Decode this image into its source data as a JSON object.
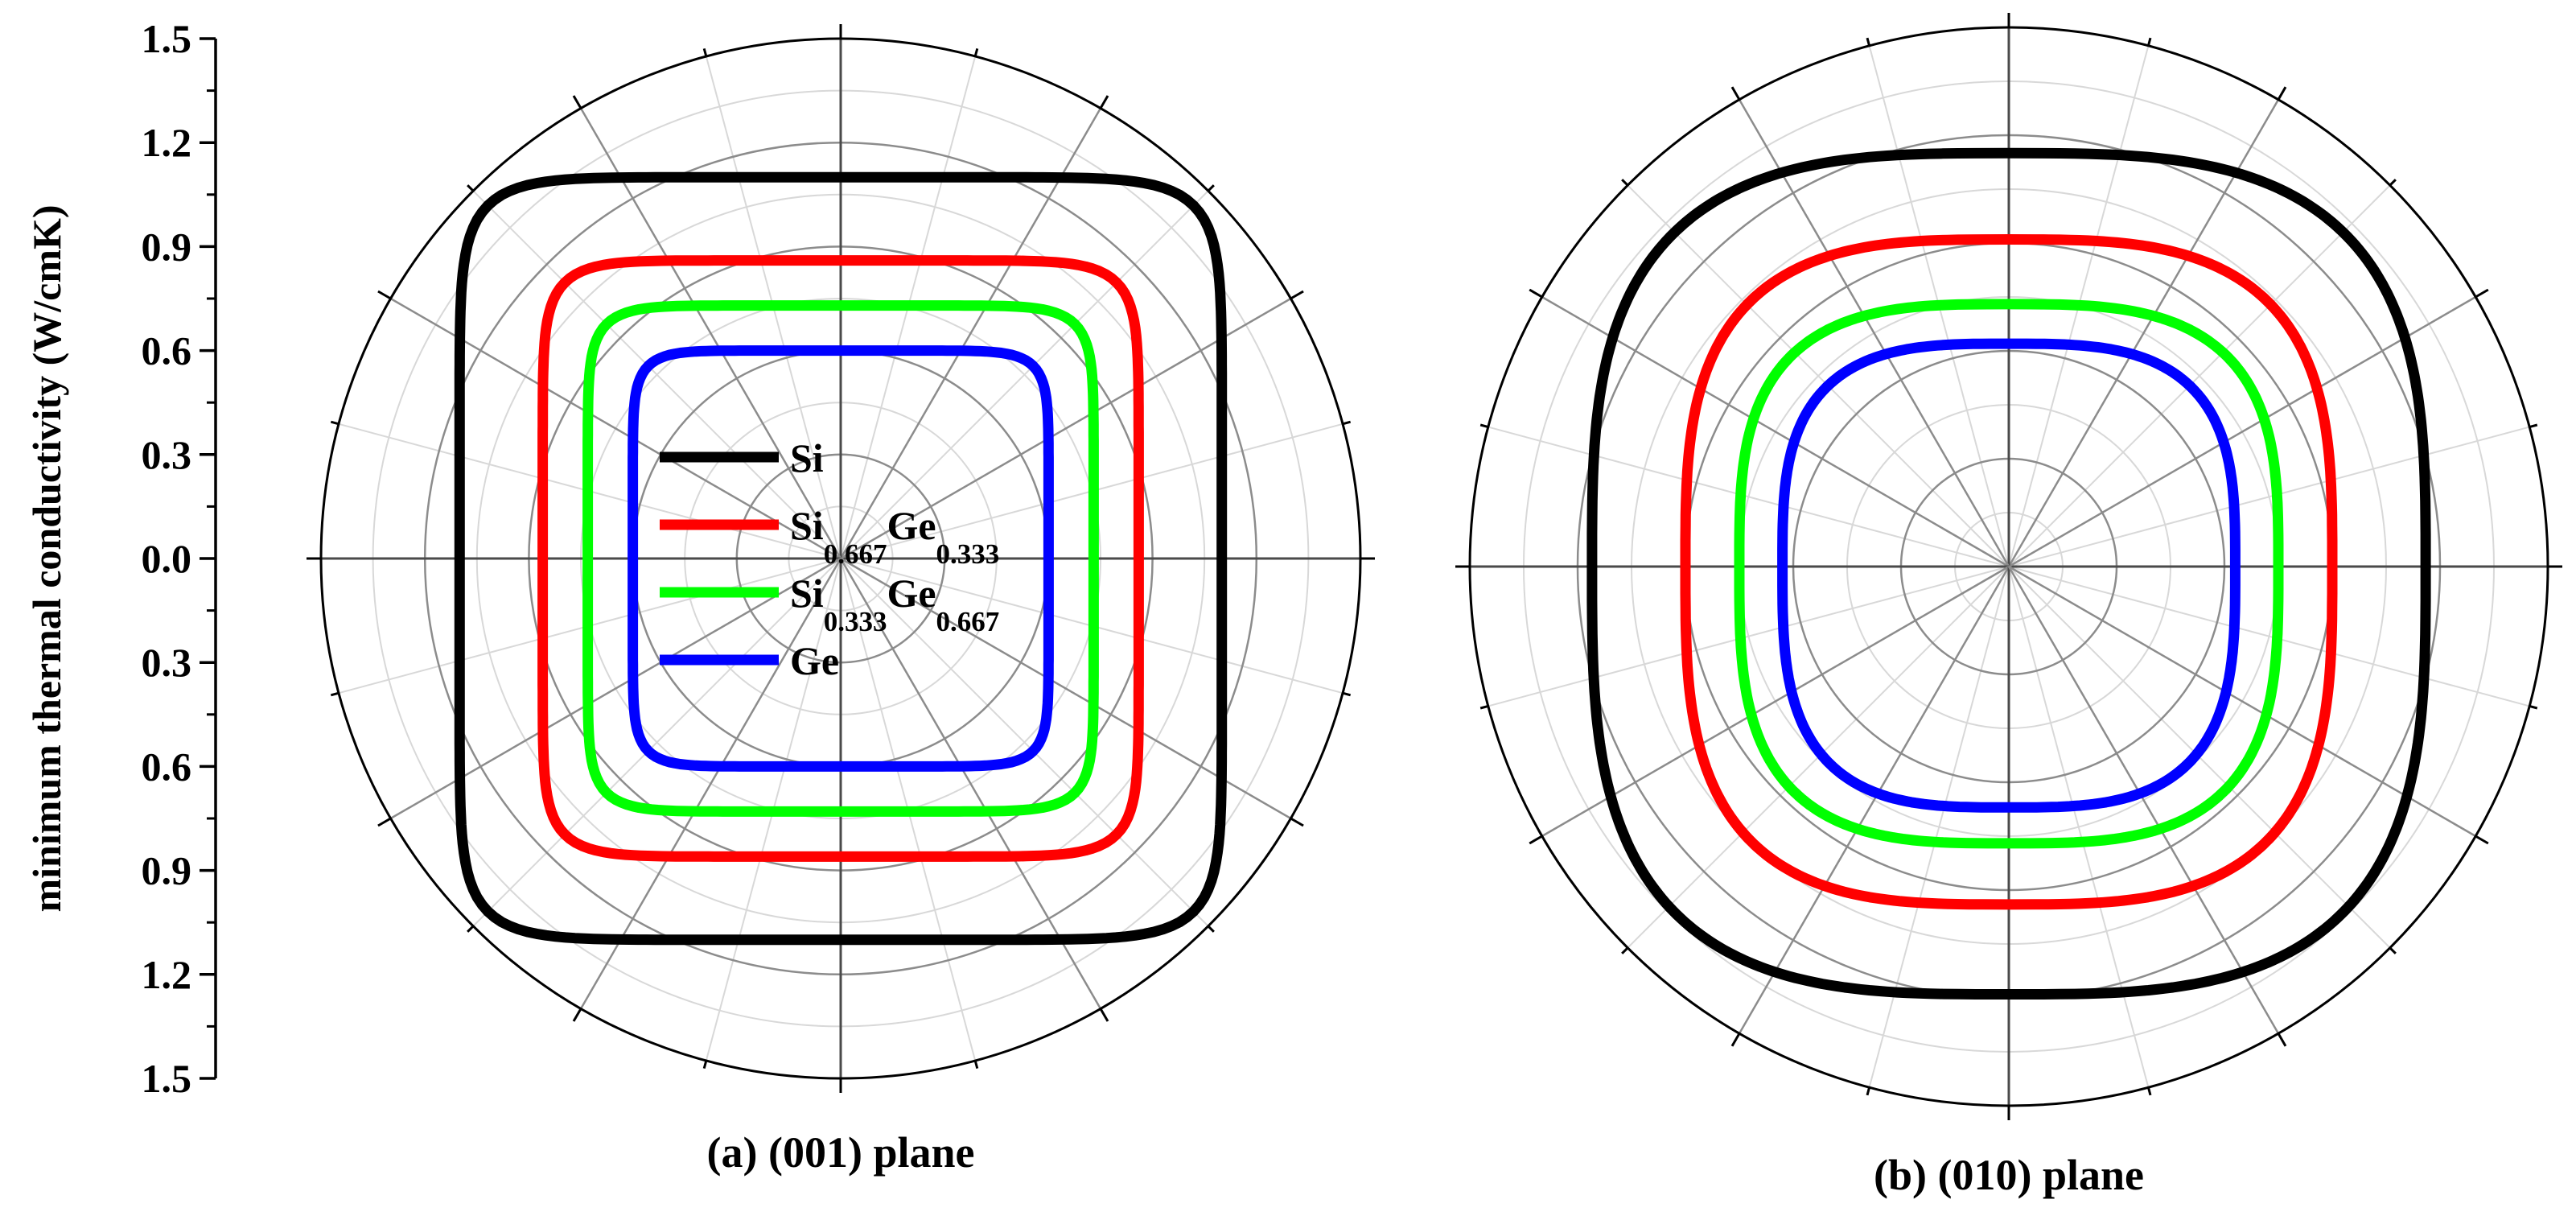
{
  "figure": {
    "ylabel": "minimum  thermal conductivity (W/cmK)",
    "y_tick_labels": [
      "1.5",
      "1.2",
      "0.9",
      "0.6",
      "0.3",
      "0.0",
      "0.3",
      "0.6",
      "0.9",
      "1.2",
      "1.5"
    ]
  },
  "chart_data": [
    {
      "type": "line",
      "subtype": "polar",
      "title": "(a) (001) plane",
      "r_range": [
        0,
        1.5
      ],
      "r_ticks": [
        0,
        0.3,
        0.6,
        0.9,
        1.2,
        1.5
      ],
      "angular_gridline_step_deg": 30,
      "angular_minor_step_deg": 15,
      "grid": true,
      "legend": {
        "placement": "center-left",
        "entries": [
          {
            "name": "Si",
            "color": "#000000"
          },
          {
            "name": "Si0.667Ge0.333",
            "base1": "Si",
            "sub1": "0.667",
            "base2": "Ge",
            "sub2": "0.333",
            "color": "#ff0000"
          },
          {
            "name": "Si0.333Ge0.667",
            "base1": "Si",
            "sub1": "0.333",
            "base2": "Ge",
            "sub2": "0.667",
            "color": "#00ff00"
          },
          {
            "name": "Ge",
            "color": "#0000ff"
          }
        ]
      },
      "series": [
        {
          "name": "Si",
          "color": "#000000",
          "r_axis": 1.1,
          "r_diag": 1.37,
          "shape_exponent": 9
        },
        {
          "name": "Si0.667Ge0.333",
          "color": "#ff0000",
          "r_axis": 0.86,
          "r_diag": 1.06,
          "shape_exponent": 9
        },
        {
          "name": "Si0.333Ge0.667",
          "color": "#00ff00",
          "r_axis": 0.73,
          "r_diag": 0.9,
          "shape_exponent": 9
        },
        {
          "name": "Ge",
          "color": "#0000ff",
          "r_axis": 0.6,
          "r_diag": 0.73,
          "shape_exponent": 9
        }
      ]
    },
    {
      "type": "line",
      "subtype": "polar",
      "title": "(b) (010) plane",
      "r_range": [
        0,
        1.5
      ],
      "r_ticks": [
        0,
        0.3,
        0.6,
        0.9,
        1.2,
        1.5
      ],
      "angular_gridline_step_deg": 30,
      "angular_minor_step_deg": 15,
      "grid": true,
      "series": [
        {
          "name": "Si",
          "color": "#000000",
          "r_x": 1.16,
          "r_top": 1.15,
          "r_bottom": 1.19,
          "shape_exponent": 3.2
        },
        {
          "name": "Si0.667Ge0.333",
          "color": "#ff0000",
          "r_x": 0.9,
          "r_top": 0.91,
          "r_bottom": 0.94,
          "shape_exponent": 3.2
        },
        {
          "name": "Si0.333Ge0.667",
          "color": "#00ff00",
          "r_x": 0.75,
          "r_top": 0.73,
          "r_bottom": 0.77,
          "shape_exponent": 3.2
        },
        {
          "name": "Ge",
          "color": "#0000ff",
          "r_x": 0.63,
          "r_top": 0.62,
          "r_bottom": 0.67,
          "shape_exponent": 3.2
        }
      ]
    }
  ]
}
